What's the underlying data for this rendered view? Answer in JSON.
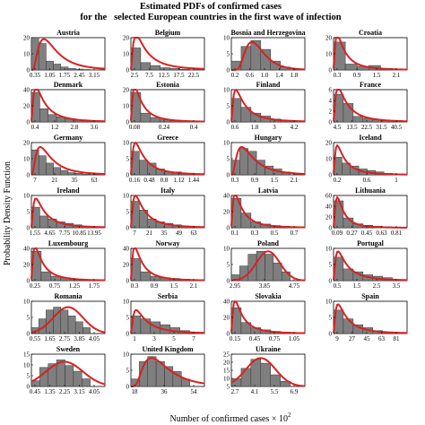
{
  "figure": {
    "title_line1": "Estimated PDFs of confirmed cases",
    "title_line2": "for the   selected European countries in the first wave of infection",
    "ylabel": "Probability Density Function",
    "xlabel": "Number of confirmed cases × 10",
    "xlabel_exp": "2",
    "colors": {
      "bar": "#7f7f7f",
      "curve": "#d92121",
      "axis": "#000000"
    }
  },
  "chart_data": [
    {
      "type": "bar",
      "title": "Austria",
      "yticks": [
        "20",
        "10",
        "0"
      ],
      "xticks": [
        "0.35",
        "1.05",
        "1.75",
        "2.45",
        "3.15"
      ],
      "values": [
        23,
        18,
        6,
        4,
        2,
        1,
        0.6,
        0.3
      ],
      "ymax": 22,
      "curve": {
        "shape": "lognormal",
        "peak": 0.17,
        "ypeak": 21,
        "sigma": 0.7
      }
    },
    {
      "type": "bar",
      "title": "Belgium",
      "yticks": [
        "20",
        "10",
        "0"
      ],
      "xticks": [
        "2.5",
        "7.5",
        "12.5",
        "17.5",
        "22.5"
      ],
      "values": [
        15,
        5,
        3,
        1.5,
        1,
        0.5
      ],
      "ymax": 22,
      "curve": {
        "shape": "lognormal",
        "peak": 0.07,
        "ypeak": 24,
        "sigma": 1.0
      }
    },
    {
      "type": "bar",
      "title": "Bosnia and Herzegovina",
      "yticks": [
        "10",
        "5",
        "0"
      ],
      "xticks": [
        "0.2",
        "0.6",
        "1.0",
        "1.4",
        "1.8"
      ],
      "values": [
        3,
        8,
        10,
        7,
        3,
        1
      ],
      "ymax": 11,
      "curve": {
        "shape": "lognormal",
        "peak": 0.28,
        "ypeak": 9.5,
        "sigma": 0.45
      }
    },
    {
      "type": "bar",
      "title": "Croatia",
      "yticks": [
        "20",
        "10",
        "0"
      ],
      "xticks": [
        "0.3",
        "0.9",
        "1.5",
        "2.1"
      ],
      "values": [
        19,
        4,
        2.5,
        3,
        1
      ],
      "ymax": 22,
      "curve": {
        "shape": "lognormal",
        "peak": 0.05,
        "ypeak": 24,
        "sigma": 1.0
      }
    },
    {
      "type": "bar",
      "title": "Denmark",
      "yticks": [
        "40",
        "20",
        "0"
      ],
      "xticks": [
        "0.4",
        "1.2",
        "2.8",
        "3.6"
      ],
      "values": [
        40,
        18,
        10,
        7,
        4,
        3,
        2
      ],
      "ymax": 44,
      "curve": {
        "shape": "lognormal",
        "peak": 0.06,
        "ypeak": 48,
        "sigma": 1.0
      }
    },
    {
      "type": "bar",
      "title": "Estonia",
      "yticks": [
        "20",
        "10",
        "0"
      ],
      "xticks": [
        "0.08",
        "0.24",
        "0.4"
      ],
      "values": [
        20,
        6,
        3,
        1.5,
        0.8,
        0.5
      ],
      "ymax": 22,
      "curve": {
        "shape": "lognormal",
        "peak": 0.05,
        "ypeak": 24,
        "sigma": 1.0
      }
    },
    {
      "type": "bar",
      "title": "Finland",
      "yticks": [
        "10",
        "5",
        "0"
      ],
      "xticks": [
        "0.6",
        "1.8",
        "3",
        "4.2"
      ],
      "values": [
        8,
        5,
        3,
        2,
        1,
        0.5
      ],
      "ymax": 11,
      "curve": {
        "shape": "lognormal",
        "peak": 0.06,
        "ypeak": 11,
        "sigma": 1.0
      }
    },
    {
      "type": "bar",
      "title": "France",
      "yticks": [
        "6",
        "4",
        "2",
        "0"
      ],
      "xticks": [
        "4.5",
        "13.5",
        "22.5",
        "31.5",
        "40.5"
      ],
      "values": [
        6,
        4,
        1.2,
        0.8,
        0.5,
        0.3
      ],
      "ymax": 7,
      "curve": {
        "shape": "lognormal",
        "peak": 0.06,
        "ypeak": 7.5,
        "sigma": 1.0
      }
    },
    {
      "type": "bar",
      "title": "Germany",
      "yticks": [
        "20",
        "10",
        "0"
      ],
      "xticks": [
        "7",
        "21",
        "35",
        "63"
      ],
      "values": [
        17,
        13,
        8,
        5,
        3,
        1.5,
        1,
        0.5
      ],
      "ymax": 22,
      "curve": {
        "shape": "lognormal",
        "peak": 0.12,
        "ypeak": 19,
        "sigma": 0.8
      }
    },
    {
      "type": "bar",
      "title": "Greece",
      "yticks": [
        "10",
        "5",
        "0"
      ],
      "xticks": [
        "0.16",
        "0.48",
        "0.8",
        "1.12",
        "1.44"
      ],
      "values": [
        8,
        5,
        4,
        2,
        1,
        1,
        0.5
      ],
      "ymax": 11,
      "curve": {
        "shape": "lognormal",
        "peak": 0.06,
        "ypeak": 11,
        "sigma": 1.0
      }
    },
    {
      "type": "bar",
      "title": "Hungary",
      "yticks": [
        "10",
        "5",
        "0"
      ],
      "xticks": [
        "0.3",
        "0.9",
        "1.5",
        "2.1"
      ],
      "values": [
        5,
        9,
        8,
        5,
        3,
        2,
        1
      ],
      "ymax": 11,
      "curve": {
        "shape": "lognormal",
        "peak": 0.14,
        "ypeak": 9.5,
        "sigma": 0.75
      }
    },
    {
      "type": "bar",
      "title": "Iceland",
      "yticks": [
        "20",
        "10",
        "0"
      ],
      "xticks": [
        "0.2",
        "0.6",
        "1"
      ],
      "values": [
        12,
        8,
        6,
        4,
        3,
        2,
        1
      ],
      "ymax": 22,
      "curve": {
        "shape": "lognormal",
        "peak": 0.05,
        "ypeak": 20,
        "sigma": 1.0
      }
    },
    {
      "type": "bar",
      "title": "Ireland",
      "yticks": [
        "10",
        "5",
        "0"
      ],
      "xticks": [
        "1.55",
        "4.65",
        "7.75",
        "10.85",
        "13.95"
      ],
      "values": [
        7,
        4,
        3,
        2,
        1.5,
        1,
        0.5
      ],
      "ymax": 11,
      "curve": {
        "shape": "lognormal",
        "peak": 0.06,
        "ypeak": 10,
        "sigma": 1.0
      }
    },
    {
      "type": "bar",
      "title": "Italy",
      "yticks": [
        "10",
        "5",
        "0"
      ],
      "xticks": [
        "7",
        "21",
        "35",
        "49",
        "63"
      ],
      "values": [
        9,
        6,
        3,
        2,
        1.5,
        1,
        0.5
      ],
      "ymax": 11,
      "curve": {
        "shape": "lognormal",
        "peak": 0.06,
        "ypeak": 11,
        "sigma": 1.0
      }
    },
    {
      "type": "bar",
      "title": "Latvia",
      "yticks": [
        "40",
        "20",
        "0"
      ],
      "xticks": [
        "0.1",
        "0.3",
        "0.5",
        "0.7"
      ],
      "values": [
        40,
        20,
        8,
        5,
        3,
        2
      ],
      "ymax": 44,
      "curve": {
        "shape": "lognormal",
        "peak": 0.05,
        "ypeak": 46,
        "sigma": 1.0
      }
    },
    {
      "type": "bar",
      "title": "Lithuania",
      "yticks": [
        "60",
        "40",
        "20",
        "0"
      ],
      "xticks": [
        "0.09",
        "0.27",
        "0.45",
        "0.63",
        "0.81"
      ],
      "values": [
        55,
        20,
        8,
        5,
        3,
        2
      ],
      "ymax": 66,
      "curve": {
        "shape": "lognormal",
        "peak": 0.05,
        "ypeak": 62,
        "sigma": 0.9
      }
    },
    {
      "type": "bar",
      "title": "Luxembourg",
      "yticks": [
        "40",
        "20",
        "0"
      ],
      "xticks": [
        "0.25",
        "0.75",
        "1.25",
        "1.75"
      ],
      "values": [
        40,
        12,
        6,
        4,
        2,
        1
      ],
      "ymax": 44,
      "curve": {
        "shape": "lognormal",
        "peak": 0.05,
        "ypeak": 46,
        "sigma": 1.0
      }
    },
    {
      "type": "bar",
      "title": "Norway",
      "yticks": [
        "40",
        "20",
        "0"
      ],
      "xticks": [
        "0.3",
        "0.9",
        "1.5",
        "2.1"
      ],
      "values": [
        30,
        12,
        6,
        4,
        3,
        2
      ],
      "ymax": 44,
      "curve": {
        "shape": "lognormal",
        "peak": 0.05,
        "ypeak": 46,
        "sigma": 1.0
      }
    },
    {
      "type": "bar",
      "title": "Poland",
      "yticks": [
        "10",
        "5",
        "0"
      ],
      "xticks": [
        "2.95",
        "3.85",
        "4.75"
      ],
      "values": [
        2,
        5,
        9,
        10,
        9,
        6,
        3
      ],
      "ymax": 11,
      "curve": {
        "shape": "normal",
        "peak": 0.5,
        "ypeak": 10,
        "sigma": 0.16
      }
    },
    {
      "type": "bar",
      "title": "Portugal",
      "yticks": [
        "10",
        "5",
        "0"
      ],
      "xticks": [
        "0.5",
        "1.5",
        "2.5",
        "3.5"
      ],
      "values": [
        8,
        4,
        3,
        2,
        1.5,
        1
      ],
      "ymax": 11,
      "curve": {
        "shape": "lognormal",
        "peak": 0.06,
        "ypeak": 10,
        "sigma": 1.0
      }
    },
    {
      "type": "bar",
      "title": "Romania",
      "yticks": [
        "10",
        "5",
        "0"
      ],
      "xticks": [
        "0.55",
        "1.65",
        "2.75",
        "3.85",
        "4.05"
      ],
      "values": [
        2,
        5,
        8,
        9,
        8,
        6,
        4,
        2
      ],
      "ymax": 11,
      "curve": {
        "shape": "normal",
        "peak": 0.5,
        "ypeak": 9,
        "sigma": 0.2
      }
    },
    {
      "type": "bar",
      "title": "Serbia",
      "yticks": [
        "10",
        "5",
        "0"
      ],
      "xticks": [
        "1",
        "3",
        "5",
        "7"
      ],
      "values": [
        6,
        5,
        4,
        3,
        2,
        1
      ],
      "ymax": 11,
      "curve": {
        "shape": "lognormal",
        "peak": 0.07,
        "ypeak": 8,
        "sigma": 1.0
      }
    },
    {
      "type": "bar",
      "title": "Slovakia",
      "yticks": [
        "40",
        "20",
        "0"
      ],
      "xticks": [
        "0.15",
        "0.45",
        "0.75",
        "1.05"
      ],
      "values": [
        35,
        15,
        8,
        5,
        3,
        2
      ],
      "ymax": 44,
      "curve": {
        "shape": "lognormal",
        "peak": 0.05,
        "ypeak": 45,
        "sigma": 1.0
      }
    },
    {
      "type": "bar",
      "title": "Spain",
      "yticks": [
        "10",
        "5",
        "0"
      ],
      "xticks": [
        "9",
        "27",
        "45",
        "63",
        "81"
      ],
      "values": [
        8,
        5,
        3,
        2,
        1,
        0.5
      ],
      "ymax": 11,
      "curve": {
        "shape": "lognormal",
        "peak": 0.06,
        "ypeak": 10,
        "sigma": 1.0
      }
    },
    {
      "type": "bar",
      "title": "Sweden",
      "yticks": [
        "15",
        "10",
        "5",
        "0"
      ],
      "xticks": [
        "0.45",
        "1.35",
        "2.25",
        "3.15",
        "4.05"
      ],
      "values": [
        3,
        10,
        12,
        14,
        11,
        8,
        4
      ],
      "ymax": 17,
      "curve": {
        "shape": "normal",
        "peak": 0.45,
        "ypeak": 13,
        "sigma": 0.25
      }
    },
    {
      "type": "bar",
      "title": "United Kingdom",
      "yticks": [
        "10",
        "5",
        "0"
      ],
      "xticks": [
        "18",
        "36",
        "54"
      ],
      "values": [
        3,
        10,
        12,
        10,
        8,
        6,
        3
      ],
      "ymax": 13,
      "curve": {
        "shape": "lognormal",
        "peak": 0.28,
        "ypeak": 11.5,
        "sigma": 0.6
      }
    },
    {
      "type": "bar",
      "title": "Ukraine",
      "yticks": [
        "25",
        "20",
        "15",
        "10",
        "5"
      ],
      "xticks": [
        "2.7",
        "4.1",
        "5.5",
        "6.9"
      ],
      "values": [
        6,
        14,
        21,
        18,
        9,
        4
      ],
      "ymax": 25,
      "curve": {
        "shape": "normal",
        "peak": 0.4,
        "ypeak": 22,
        "sigma": 0.2
      }
    }
  ]
}
